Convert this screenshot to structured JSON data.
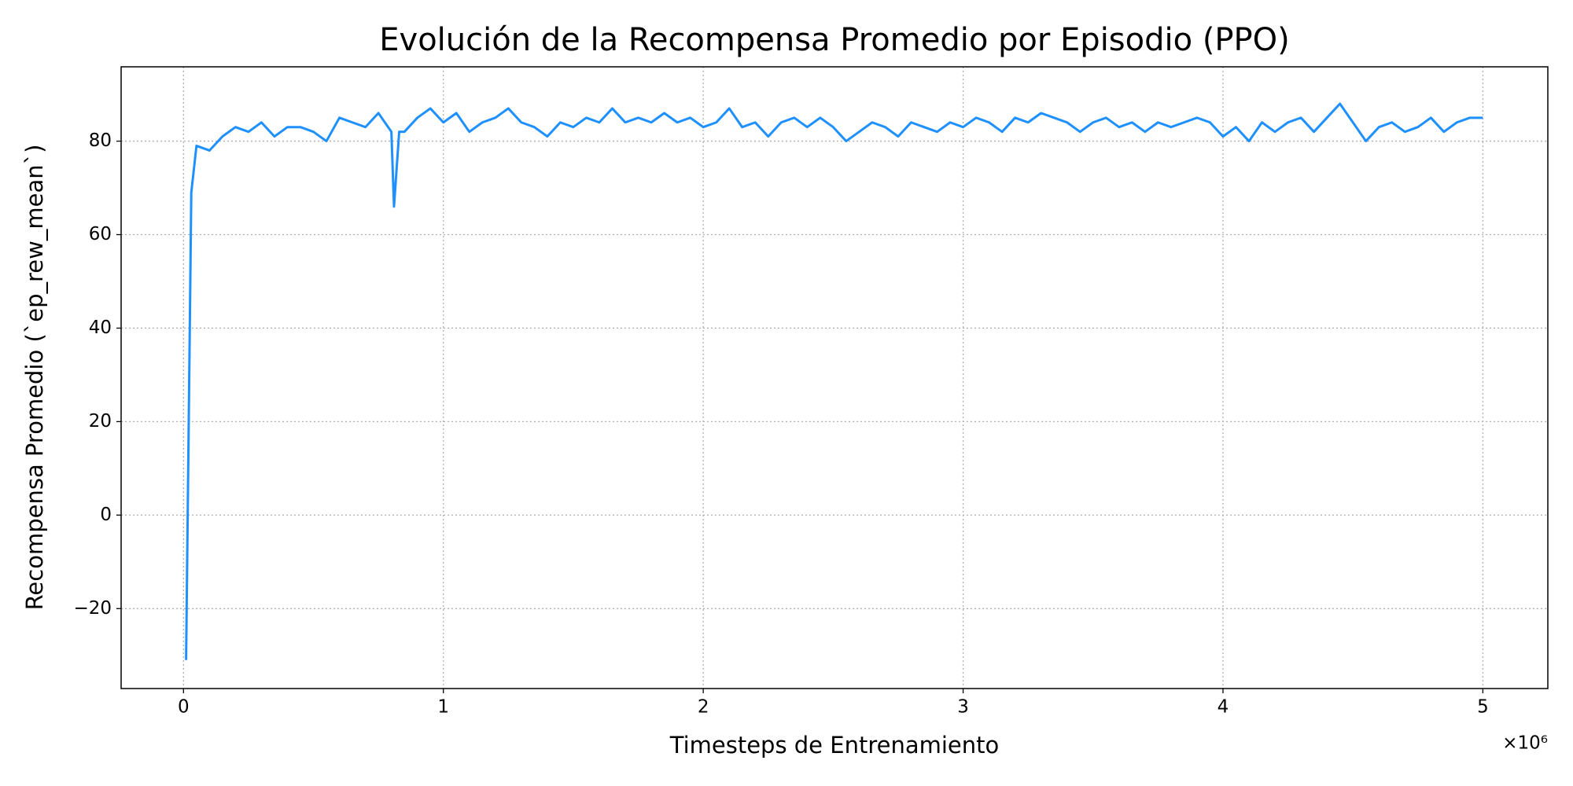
{
  "chart_data": {
    "type": "line",
    "title": "Evolución de la Recompensa Promedio por Episodio (PPO)",
    "xlabel": "Timesteps de Entrenamiento",
    "ylabel": "Recompensa Promedio (`ep_rew_mean`)",
    "x_offset_label": "×10⁶",
    "xlim": [
      -240000,
      5250000
    ],
    "ylim": [
      -37.1,
      95.9
    ],
    "xticks": [
      0,
      {
        "value": 1000000,
        "label": "1"
      },
      {
        "value": 2000000,
        "label": "2"
      },
      {
        "value": 3000000,
        "label": "3"
      },
      {
        "value": 4000000,
        "label": "4"
      },
      {
        "value": 5000000,
        "label": "5"
      }
    ],
    "yticks": [
      {
        "value": -20,
        "label": "−20"
      },
      0,
      20,
      40,
      60,
      80
    ],
    "grid": true,
    "x": [
      10000,
      30000,
      50000,
      100000,
      150000,
      200000,
      250000,
      300000,
      350000,
      400000,
      450000,
      500000,
      550000,
      600000,
      650000,
      700000,
      750000,
      800000,
      810000,
      830000,
      850000,
      900000,
      950000,
      1000000,
      1050000,
      1100000,
      1150000,
      1200000,
      1250000,
      1300000,
      1350000,
      1400000,
      1450000,
      1500000,
      1550000,
      1600000,
      1650000,
      1700000,
      1750000,
      1800000,
      1850000,
      1900000,
      1950000,
      2000000,
      2050000,
      2100000,
      2150000,
      2200000,
      2250000,
      2300000,
      2350000,
      2400000,
      2450000,
      2500000,
      2550000,
      2600000,
      2650000,
      2700000,
      2750000,
      2800000,
      2850000,
      2900000,
      2950000,
      3000000,
      3050000,
      3100000,
      3150000,
      3200000,
      3250000,
      3300000,
      3350000,
      3400000,
      3450000,
      3500000,
      3550000,
      3600000,
      3650000,
      3700000,
      3750000,
      3800000,
      3850000,
      3900000,
      3950000,
      4000000,
      4050000,
      4100000,
      4150000,
      4200000,
      4250000,
      4300000,
      4350000,
      4400000,
      4450000,
      4500000,
      4550000,
      4600000,
      4650000,
      4700000,
      4750000,
      4800000,
      4850000,
      4900000,
      4950000,
      5000000
    ],
    "series": [
      {
        "name": "ep_rew_mean",
        "color": "#1e90ff",
        "values": [
          -31,
          69,
          79,
          78,
          81,
          83,
          82,
          84,
          81,
          83,
          83,
          82,
          80,
          85,
          84,
          83,
          86,
          82,
          66,
          82,
          82,
          85,
          87,
          84,
          86,
          82,
          84,
          85,
          87,
          84,
          83,
          81,
          84,
          83,
          85,
          84,
          87,
          84,
          85,
          84,
          86,
          84,
          85,
          83,
          84,
          87,
          83,
          84,
          81,
          84,
          85,
          83,
          85,
          83,
          80,
          82,
          84,
          83,
          81,
          84,
          83,
          82,
          84,
          83,
          85,
          84,
          82,
          85,
          84,
          86,
          85,
          84,
          82,
          84,
          85,
          83,
          84,
          82,
          84,
          83,
          84,
          85,
          84,
          81,
          83,
          80,
          84,
          82,
          84,
          85,
          82,
          85,
          88,
          84,
          80,
          83,
          84,
          82,
          83,
          85,
          82,
          84,
          85,
          85
        ]
      }
    ]
  }
}
